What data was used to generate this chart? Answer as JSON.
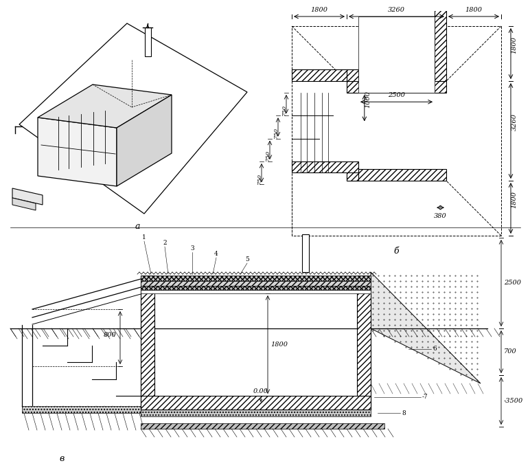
{
  "bg_color": "#ffffff",
  "line_color": "#000000",
  "label_a": "а",
  "label_b": "б",
  "label_v": "в",
  "dim_top_1800_left": "1800",
  "dim_top_3260": "3260",
  "dim_top_1800_right": "1800",
  "dim_2500": "2500",
  "dim_750_1": "750",
  "dim_750_2": "750",
  "dim_750_3": "750",
  "dim_750_4": "750",
  "dim_1000": "1000",
  "dim_380": "380",
  "dim_right_1800_top": "1800",
  "dim_right_3260": "3260",
  "dim_right_1800_bot": "1800",
  "dim_section_800": "800",
  "dim_section_1800": "1800",
  "dim_section_000": "0.00",
  "dim_section_2500": "2500",
  "dim_section_700": "700",
  "dim_section_3500": "-3500",
  "label_1": "1",
  "label_2": "2",
  "label_3": "3",
  "label_4": "4",
  "label_5": "5",
  "label_6": "6",
  "label_7": "-7",
  "label_8": "8"
}
